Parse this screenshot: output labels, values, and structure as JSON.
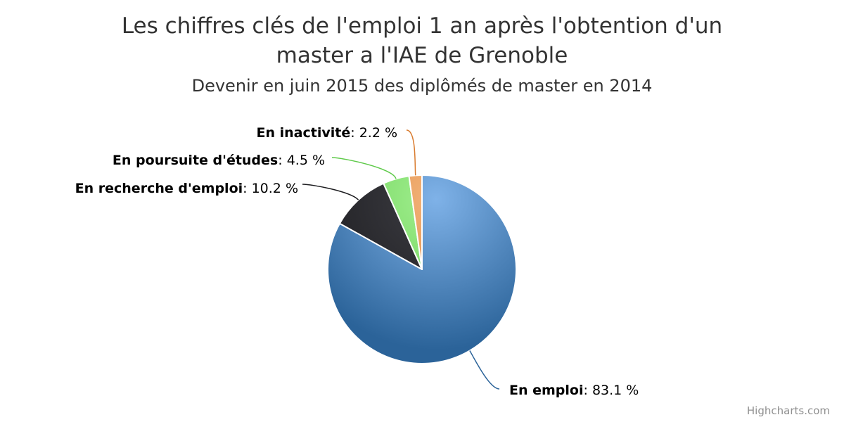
{
  "chart_data": {
    "type": "pie",
    "title": "Les chiffres clés de l'emploi 1 an après l'obtention d'un master a l'IAE de Grenoble",
    "subtitle": "Devenir en juin 2015 des diplômés de master en 2014",
    "unit": "%",
    "slices": [
      {
        "name": "En emploi",
        "value": 83.1,
        "value_label": "83.1 %",
        "color": "#3f7ebd",
        "color_light": "#7fb2e8",
        "color_dark": "#2b6399"
      },
      {
        "name": "En recherche d'emploi",
        "value": 10.2,
        "value_label": "10.2 %",
        "color": "#2a2a2e",
        "color_light": "#3c3c42",
        "color_dark": "#1c1c1f"
      },
      {
        "name": "En poursuite d'études",
        "value": 4.5,
        "value_label": "4.5 %",
        "color": "#7fe06a",
        "color_light": "#a2ef90",
        "color_dark": "#5fca4a"
      },
      {
        "name": "En inactivité",
        "value": 2.2,
        "value_label": "2.2 %",
        "color": "#e8944a",
        "color_light": "#f2b37a",
        "color_dark": "#d97b2e"
      }
    ]
  },
  "credits": "Highcharts.com"
}
